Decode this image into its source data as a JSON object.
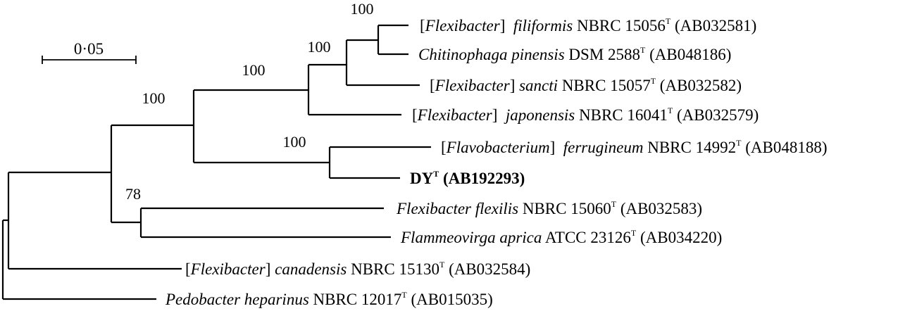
{
  "scale_bar": {
    "label": "0·05"
  },
  "taxa": [
    {
      "id": "flex_filiformis",
      "prefix": "[",
      "genus": "Flexibacter",
      "mid": "]  ",
      "species": "filiformis",
      "strain": " NBRC 15056",
      "sup": "T",
      "accession": " (AB032581)",
      "bold": false
    },
    {
      "id": "chitino_pinensis",
      "prefix": "",
      "genus": "",
      "mid": "",
      "species": "Chitinophaga pinensis",
      "strain": " DSM 2588",
      "sup": "T",
      "accession": " (AB048186)",
      "bold": false
    },
    {
      "id": "flex_sancti",
      "prefix": "[",
      "genus": "Flexibacter",
      "mid": "] ",
      "species": "sancti",
      "strain": " NBRC 15057",
      "sup": "T",
      "accession": " (AB032582)",
      "bold": false
    },
    {
      "id": "flex_japonensis",
      "prefix": "[",
      "genus": "Flexibacter",
      "mid": "]  ",
      "species": "japonensis",
      "strain": " NBRC 16041",
      "sup": "T",
      "accession": " (AB032579)",
      "bold": false
    },
    {
      "id": "flavo_ferrugineum",
      "prefix": "[",
      "genus": "Flavobacterium",
      "mid": "]  ",
      "species": "ferrugineum",
      "strain": " NBRC 14992",
      "sup": "T",
      "accession": " (AB048188)",
      "bold": false
    },
    {
      "id": "dy",
      "prefix": "",
      "genus": "",
      "mid": "",
      "species": "",
      "strain": "DY",
      "sup": "T",
      "accession": " (AB192293)",
      "bold": true
    },
    {
      "id": "flex_flexilis",
      "prefix": "",
      "genus": "",
      "mid": "",
      "species": "Flexibacter flexilis",
      "strain": " NBRC 15060",
      "sup": "T",
      "accession": " (AB032583)",
      "bold": false
    },
    {
      "id": "flammeo_aprica",
      "prefix": "",
      "genus": "",
      "mid": "",
      "species": "Flammeovirga aprica",
      "strain": " ATCC 23126",
      "sup": "T",
      "accession": " (AB034220)",
      "bold": false
    },
    {
      "id": "flex_canadensis",
      "prefix": "[",
      "genus": "Flexibacter",
      "mid": "] ",
      "species": "canadensis",
      "strain": " NBRC 15130",
      "sup": "T",
      "accession": " (AB032584)",
      "bold": false
    },
    {
      "id": "pedo_heparinus",
      "prefix": "",
      "genus": "",
      "mid": "",
      "species": "Pedobacter heparinus",
      "strain": " NBRC 12017",
      "sup": "T",
      "accession": " (AB015035)",
      "bold": false
    }
  ],
  "bootstrap": {
    "filiformis_pinensis": "100",
    "filiformis_sancti": "100",
    "chitinophaga_clade": "100",
    "upper_clade": "100",
    "ferrugineum_dy": "100",
    "flexilis_aprica": "78"
  }
}
